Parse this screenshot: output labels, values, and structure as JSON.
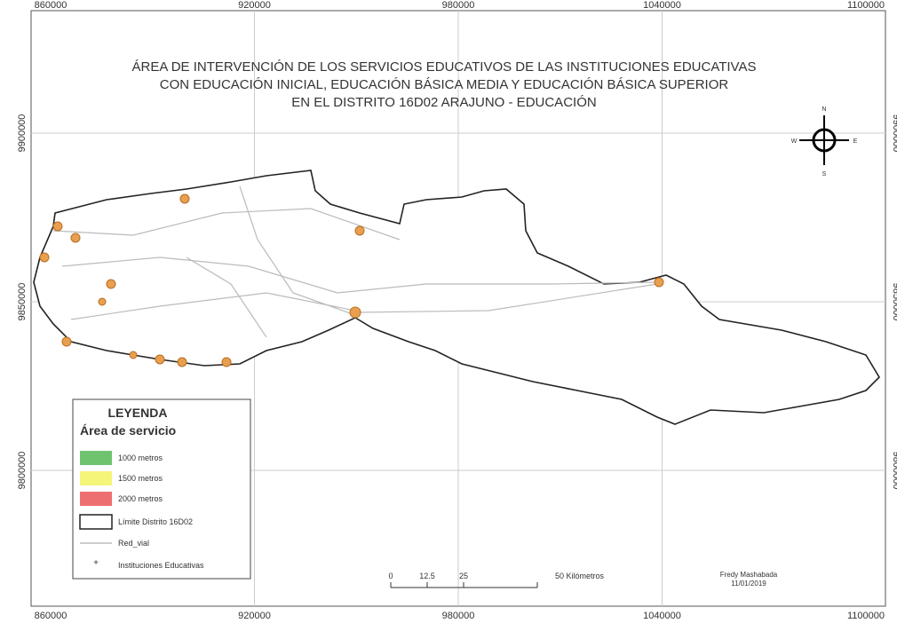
{
  "map": {
    "title": [
      "ÁREA DE INTERVENCIÓN DE LOS SERVICIOS EDUCATIVOS DE LAS INSTITUCIONES EDUCATIVAS",
      "CON EDUCACIÓN INICIAL, EDUCACIÓN BÁSICA MEDIA Y EDUCACIÓN BÁSICA SUPERIOR",
      "EN EL DISTRITO 16D02 ARAJUNO - EDUCACIÓN"
    ],
    "xticks": [
      860000,
      920000,
      980000,
      1040000,
      1100000
    ],
    "yticks": [
      9900000,
      9850000,
      9800000
    ],
    "compass": {
      "n": "N",
      "s": "S",
      "e": "E",
      "w": "W"
    },
    "legend": {
      "title": "LEYENDA",
      "subtitle": "Área de servicio",
      "items": [
        "1000 metros",
        "1500 metros",
        "2000 metros",
        "Límite Distrito 16D02",
        "Red_vial",
        "Instituciones Educativas"
      ]
    },
    "scale": {
      "labels": [
        "0",
        "12.5",
        "25",
        "50 Kilómetros"
      ]
    },
    "author": "Fredy Mashabada",
    "date": "11/01/2019"
  }
}
